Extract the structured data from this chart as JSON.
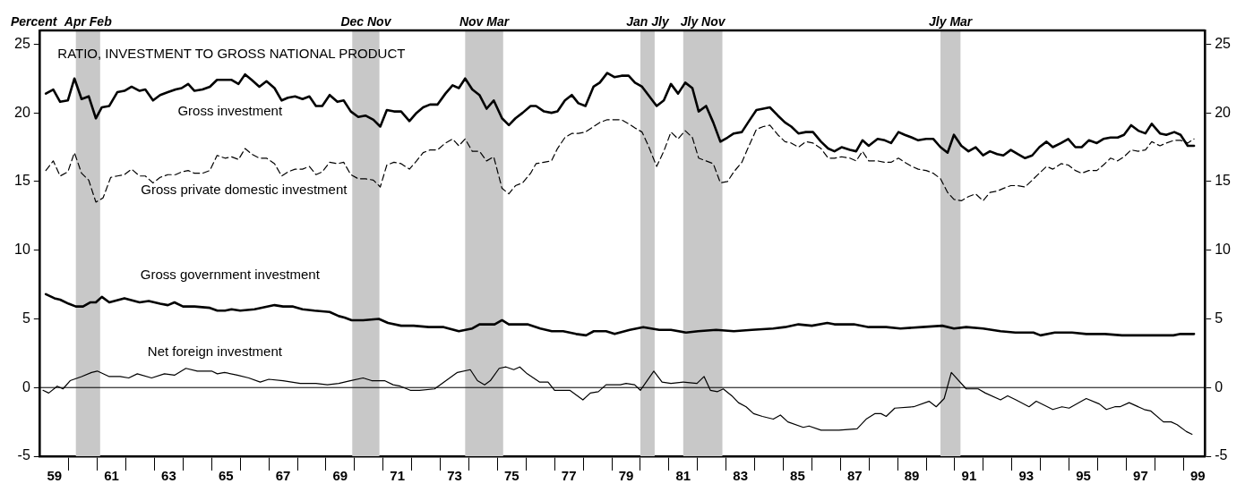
{
  "chart_data": {
    "type": "line",
    "title": "RATIO, INVESTMENT TO GROSS NATIONAL PRODUCT",
    "ylabel": "Percent",
    "xlim": [
      58.5,
      99.25
    ],
    "xticks": [
      59,
      {
        "value": 59.5,
        "label": null
      },
      {
        "value": 60.5,
        "label": null
      },
      61,
      {
        "value": 61.5,
        "label": null
      },
      {
        "value": 62.5,
        "label": null
      },
      63,
      {
        "value": 63.5,
        "label": null
      },
      {
        "value": 64.5,
        "label": null
      },
      65,
      {
        "value": 65.5,
        "label": null
      },
      {
        "value": 66.5,
        "label": null
      },
      67,
      {
        "value": 67.5,
        "label": null
      },
      {
        "value": 68.5,
        "label": null
      },
      69,
      {
        "value": 69.5,
        "label": null
      },
      {
        "value": 70.5,
        "label": null
      },
      71,
      {
        "value": 71.5,
        "label": null
      },
      {
        "value": 72.5,
        "label": null
      },
      73,
      {
        "value": 73.5,
        "label": null
      },
      {
        "value": 74.5,
        "label": null
      },
      75,
      {
        "value": 75.5,
        "label": null
      },
      {
        "value": 76.5,
        "label": null
      },
      77,
      {
        "value": 77.5,
        "label": null
      },
      {
        "value": 78.5,
        "label": null
      },
      79,
      {
        "value": 79.5,
        "label": null
      },
      {
        "value": 80.5,
        "label": null
      },
      81,
      {
        "value": 81.5,
        "label": null
      },
      {
        "value": 82.5,
        "label": null
      },
      83,
      {
        "value": 83.5,
        "label": null
      },
      {
        "value": 84.5,
        "label": null
      },
      85,
      {
        "value": 85.5,
        "label": null
      },
      {
        "value": 86.5,
        "label": null
      },
      87,
      {
        "value": 87.5,
        "label": null
      },
      {
        "value": 88.5,
        "label": null
      },
      89,
      {
        "value": 89.5,
        "label": null
      },
      {
        "value": 90.5,
        "label": null
      },
      91,
      {
        "value": 91.5,
        "label": null
      },
      {
        "value": 92.5,
        "label": null
      },
      93,
      {
        "value": 93.5,
        "label": null
      },
      {
        "value": 94.5,
        "label": null
      },
      95,
      {
        "value": 95.5,
        "label": null
      },
      {
        "value": 96.5,
        "label": null
      },
      97,
      {
        "value": 97.5,
        "label": null
      },
      {
        "value": 98.5,
        "label": null
      },
      99
    ],
    "ylim": [
      -5,
      26
    ],
    "yticks": [
      -5,
      0,
      5,
      10,
      15,
      20,
      25
    ],
    "y2lim": [
      -5,
      26
    ],
    "y2ticks": [
      -5,
      0,
      5,
      10,
      15,
      20,
      25
    ],
    "grid": false,
    "legend": false,
    "marker": "none",
    "bands": [
      {
        "axis": "x",
        "from": 59.75,
        "to": 60.6,
        "label": "Apr Feb",
        "color": "#c8c8c8"
      },
      {
        "axis": "x",
        "from": 69.42,
        "to": 70.37,
        "label": "Dec Nov",
        "color": "#c8c8c8"
      },
      {
        "axis": "x",
        "from": 73.37,
        "to": 74.7,
        "label": "Nov Mar",
        "color": "#c8c8c8"
      },
      {
        "axis": "x",
        "from": 79.5,
        "to": 80.0,
        "label": "Jan Jly",
        "color": "#c8c8c8"
      },
      {
        "axis": "x",
        "from": 81.0,
        "to": 82.37,
        "label": "Jly Nov",
        "color": "#c8c8c8"
      },
      {
        "axis": "x",
        "from": 90.0,
        "to": 90.7,
        "label": "Jly Mar",
        "color": "#c8c8c8"
      }
    ],
    "ref_lines": [
      {
        "axis": "y",
        "value": 0,
        "color": "#000000"
      }
    ],
    "series": [
      {
        "name": "Gross investment",
        "color": "#000000",
        "line_style": "solid",
        "x": [
          58.7,
          58.96,
          59.2,
          59.47,
          59.7,
          59.95,
          60.2,
          60.45,
          60.66,
          60.92,
          61.2,
          61.45,
          61.7,
          61.98,
          62.18,
          62.45,
          62.7,
          62.97,
          63.24,
          63.45,
          63.68,
          63.9,
          64.18,
          64.44,
          64.69,
          64.97,
          65.2,
          65.44,
          65.67,
          65.9,
          66.17,
          66.42,
          66.7,
          66.95,
          67.17,
          67.42,
          67.68,
          67.92,
          68.15,
          68.37,
          68.63,
          68.9,
          69.12,
          69.37,
          69.63,
          69.88,
          70.16,
          70.4,
          70.63,
          70.88,
          71.13,
          71.42,
          71.67,
          71.9,
          72.14,
          72.4,
          72.68,
          72.93,
          73.15,
          73.37,
          73.62,
          73.87,
          74.12,
          74.37,
          74.66,
          74.9,
          75.13,
          75.38,
          75.66,
          75.85,
          76.13,
          76.39,
          76.6,
          76.86,
          77.1,
          77.33,
          77.58,
          77.86,
          78.08,
          78.34,
          78.59,
          78.84,
          79.09,
          79.31,
          79.56,
          79.78,
          80.07,
          80.32,
          80.57,
          80.82,
          81.07,
          81.32,
          81.54,
          81.8,
          82.05,
          82.3,
          82.55,
          82.77,
          83.05,
          83.3,
          83.56,
          83.8,
          84.03,
          84.31,
          84.56,
          84.78,
          85.03,
          85.29,
          85.54,
          85.82,
          86.07,
          86.29,
          86.54,
          86.83,
          87.05,
          87.27,
          87.49,
          87.8,
          88.05,
          88.27,
          88.53,
          88.75,
          89.0,
          89.22,
          89.5,
          89.75,
          90.0,
          90.25,
          90.47,
          90.73,
          90.98,
          91.23,
          91.49,
          91.73,
          91.98,
          92.2,
          92.46,
          92.7,
          92.96,
          93.21,
          93.46,
          93.71,
          93.93,
          94.22,
          94.47,
          94.72,
          94.94,
          95.19,
          95.47,
          95.7,
          95.95,
          96.2,
          96.42,
          96.67,
          96.92,
          97.17,
          97.39,
          97.68,
          97.9,
          98.18,
          98.4,
          98.65,
          98.87
        ],
        "values": [
          21.4,
          21.7,
          20.8,
          20.9,
          22.5,
          21.0,
          21.2,
          19.6,
          20.4,
          20.5,
          21.5,
          21.6,
          21.9,
          21.6,
          21.7,
          20.9,
          21.3,
          21.5,
          21.7,
          21.8,
          22.1,
          21.6,
          21.7,
          21.9,
          22.4,
          22.4,
          22.4,
          22.1,
          22.8,
          22.4,
          21.9,
          22.3,
          21.8,
          20.9,
          21.1,
          21.2,
          21.0,
          21.2,
          20.5,
          20.5,
          21.3,
          20.8,
          20.9,
          20.1,
          19.7,
          19.8,
          19.5,
          19.0,
          20.2,
          20.1,
          20.1,
          19.4,
          20.0,
          20.4,
          20.6,
          20.6,
          21.4,
          22.0,
          21.8,
          22.5,
          21.7,
          21.3,
          20.3,
          20.9,
          19.6,
          19.1,
          19.6,
          20.0,
          20.5,
          20.5,
          20.1,
          20.0,
          20.1,
          20.9,
          21.3,
          20.7,
          20.5,
          21.9,
          22.2,
          22.9,
          22.6,
          22.7,
          22.7,
          22.2,
          21.9,
          21.3,
          20.5,
          20.9,
          22.1,
          21.4,
          22.2,
          21.8,
          20.1,
          20.5,
          19.3,
          17.9,
          18.2,
          18.5,
          18.6,
          19.4,
          20.2,
          20.3,
          20.4,
          19.8,
          19.3,
          19.0,
          18.5,
          18.6,
          18.6,
          17.9,
          17.4,
          17.2,
          17.5,
          17.3,
          17.2,
          18.0,
          17.6,
          18.1,
          18.0,
          17.8,
          18.6,
          18.4,
          18.2,
          18.0,
          18.1,
          18.1,
          17.5,
          17.1,
          18.4,
          17.6,
          17.2,
          17.5,
          16.9,
          17.2,
          17.0,
          16.9,
          17.3,
          17.0,
          16.7,
          16.9,
          17.5,
          17.9,
          17.5,
          17.8,
          18.1,
          17.5,
          17.5,
          18.0,
          17.8,
          18.1,
          18.2,
          18.2,
          18.4,
          19.1,
          18.7,
          18.5,
          19.2,
          18.5,
          18.4,
          18.6,
          18.4,
          17.6,
          17.6
        ]
      },
      {
        "name": "Gross private domestic investment",
        "color": "#000000",
        "line_style": "dashed",
        "x": [
          58.7,
          58.96,
          59.2,
          59.47,
          59.7,
          59.95,
          60.2,
          60.45,
          60.7,
          60.97,
          61.2,
          61.45,
          61.7,
          61.98,
          62.18,
          62.45,
          62.7,
          62.97,
          63.24,
          63.45,
          63.68,
          63.9,
          64.18,
          64.44,
          64.69,
          64.97,
          65.2,
          65.44,
          65.67,
          65.9,
          66.17,
          66.42,
          66.7,
          66.95,
          67.17,
          67.42,
          67.68,
          67.92,
          68.15,
          68.37,
          68.63,
          68.9,
          69.12,
          69.37,
          69.63,
          69.88,
          70.16,
          70.4,
          70.63,
          70.88,
          71.13,
          71.42,
          71.67,
          71.9,
          72.14,
          72.4,
          72.68,
          72.93,
          73.15,
          73.37,
          73.62,
          73.87,
          74.12,
          74.37,
          74.66,
          74.9,
          75.13,
          75.38,
          75.66,
          75.85,
          76.13,
          76.39,
          76.6,
          76.86,
          77.1,
          77.33,
          77.58,
          77.86,
          78.08,
          78.34,
          78.59,
          78.84,
          79.09,
          79.31,
          79.56,
          79.78,
          80.07,
          80.32,
          80.57,
          80.82,
          81.07,
          81.32,
          81.54,
          81.8,
          82.05,
          82.3,
          82.55,
          82.77,
          83.05,
          83.3,
          83.56,
          83.8,
          84.03,
          84.31,
          84.56,
          84.78,
          85.03,
          85.29,
          85.54,
          85.82,
          86.07,
          86.29,
          86.54,
          86.83,
          87.05,
          87.27,
          87.49,
          87.8,
          88.05,
          88.27,
          88.53,
          88.75,
          89.0,
          89.22,
          89.5,
          89.75,
          90.0,
          90.25,
          90.47,
          90.73,
          90.98,
          91.23,
          91.49,
          91.73,
          91.98,
          92.2,
          92.46,
          92.7,
          92.96,
          93.21,
          93.46,
          93.71,
          93.93,
          94.22,
          94.47,
          94.72,
          94.94,
          95.19,
          95.47,
          95.7,
          95.95,
          96.2,
          96.42,
          96.67,
          96.92,
          97.17,
          97.39,
          97.68,
          97.9,
          98.18,
          98.4,
          98.65,
          98.87
        ],
        "values": [
          15.8,
          16.5,
          15.4,
          15.7,
          17.1,
          15.6,
          15.1,
          13.5,
          13.8,
          15.3,
          15.4,
          15.5,
          15.9,
          15.4,
          15.4,
          14.9,
          15.3,
          15.5,
          15.5,
          15.7,
          15.8,
          15.6,
          15.6,
          15.8,
          16.9,
          16.7,
          16.8,
          16.6,
          17.4,
          17.0,
          16.7,
          16.7,
          16.3,
          15.4,
          15.7,
          15.9,
          15.9,
          16.1,
          15.5,
          15.7,
          16.4,
          16.3,
          16.4,
          15.5,
          15.2,
          15.2,
          15.1,
          14.6,
          16.2,
          16.4,
          16.3,
          15.9,
          16.5,
          17.1,
          17.3,
          17.3,
          17.8,
          18.1,
          17.6,
          18.1,
          17.2,
          17.2,
          16.5,
          16.8,
          14.5,
          14.1,
          14.7,
          14.9,
          15.6,
          16.3,
          16.4,
          16.5,
          17.4,
          18.2,
          18.5,
          18.5,
          18.6,
          19.0,
          19.3,
          19.5,
          19.5,
          19.5,
          19.2,
          18.9,
          18.6,
          17.6,
          16.1,
          17.2,
          18.6,
          18.1,
          18.7,
          18.2,
          16.7,
          16.5,
          16.3,
          14.9,
          15.0,
          15.7,
          16.4,
          17.6,
          18.8,
          19.0,
          19.1,
          18.4,
          17.9,
          17.8,
          17.5,
          17.9,
          17.8,
          17.4,
          16.7,
          16.7,
          16.8,
          16.7,
          16.5,
          17.2,
          16.5,
          16.5,
          16.4,
          16.4,
          16.7,
          16.4,
          16.1,
          15.9,
          15.8,
          15.6,
          15.2,
          14.2,
          13.7,
          13.6,
          13.9,
          14.1,
          13.6,
          14.2,
          14.3,
          14.5,
          14.7,
          14.7,
          14.6,
          15.1,
          15.6,
          16.1,
          15.9,
          16.3,
          16.2,
          15.8,
          15.6,
          15.8,
          15.8,
          16.2,
          16.7,
          16.5,
          16.8,
          17.3,
          17.2,
          17.3,
          17.9,
          17.6,
          17.8,
          18.0,
          18.0,
          17.8,
          18.1
        ]
      },
      {
        "name": "Gross government investment",
        "color": "#000000",
        "line_style": "solid",
        "x": [
          58.7,
          59.0,
          59.2,
          59.5,
          59.75,
          60.0,
          60.25,
          60.45,
          60.66,
          60.92,
          61.45,
          61.98,
          62.3,
          62.7,
          62.97,
          63.2,
          63.5,
          63.9,
          64.44,
          64.7,
          64.97,
          65.2,
          65.5,
          66.0,
          66.7,
          67.0,
          67.35,
          67.68,
          68.1,
          68.63,
          68.95,
          69.15,
          69.4,
          69.8,
          70.35,
          70.67,
          71.13,
          71.57,
          72.1,
          72.62,
          73.15,
          73.62,
          73.87,
          74.4,
          74.66,
          74.9,
          75.2,
          75.55,
          76.0,
          76.4,
          76.8,
          77.25,
          77.6,
          77.87,
          78.3,
          78.6,
          79.13,
          79.6,
          80.16,
          80.57,
          81.1,
          81.52,
          82.15,
          82.77,
          83.4,
          84.15,
          84.56,
          85.03,
          85.5,
          86.04,
          86.29,
          86.97,
          87.49,
          88.1,
          88.6,
          89.35,
          90.06,
          90.47,
          90.9,
          91.49,
          92.1,
          92.62,
          93.25,
          93.5,
          94.0,
          94.6,
          95.1,
          95.75,
          96.35,
          97.0,
          97.5,
          98.15,
          98.4,
          98.87
        ],
        "values": [
          6.8,
          6.5,
          6.4,
          6.1,
          5.9,
          5.9,
          6.2,
          6.2,
          6.6,
          6.2,
          6.5,
          6.2,
          6.3,
          6.1,
          6.0,
          6.2,
          5.9,
          5.9,
          5.8,
          5.6,
          5.6,
          5.7,
          5.6,
          5.7,
          6.0,
          5.9,
          5.9,
          5.7,
          5.6,
          5.5,
          5.2,
          5.1,
          4.9,
          4.9,
          5.0,
          4.7,
          4.5,
          4.5,
          4.4,
          4.4,
          4.1,
          4.3,
          4.6,
          4.6,
          4.9,
          4.6,
          4.6,
          4.6,
          4.3,
          4.1,
          4.1,
          3.9,
          3.8,
          4.1,
          4.1,
          3.9,
          4.2,
          4.4,
          4.2,
          4.2,
          4.0,
          4.1,
          4.2,
          4.1,
          4.2,
          4.3,
          4.4,
          4.6,
          4.5,
          4.7,
          4.6,
          4.6,
          4.4,
          4.4,
          4.3,
          4.4,
          4.5,
          4.3,
          4.4,
          4.3,
          4.1,
          4.0,
          4.0,
          3.8,
          4.0,
          4.0,
          3.9,
          3.9,
          3.8,
          3.8,
          3.8,
          3.8,
          3.9,
          3.9
        ]
      },
      {
        "name": "Net foreign investment",
        "color": "#000000",
        "line_style": "solid",
        "x": [
          58.6,
          58.8,
          59.1,
          59.3,
          59.55,
          59.95,
          60.3,
          60.5,
          60.92,
          61.3,
          61.6,
          61.9,
          62.4,
          62.85,
          63.2,
          63.6,
          64.0,
          64.5,
          64.7,
          64.95,
          65.4,
          65.8,
          66.2,
          66.5,
          67.0,
          67.6,
          68.15,
          68.55,
          68.95,
          69.35,
          69.8,
          70.1,
          70.55,
          70.85,
          71.1,
          71.45,
          71.77,
          72.3,
          72.7,
          73.1,
          73.55,
          73.8,
          74.05,
          74.25,
          74.56,
          74.8,
          75.07,
          75.28,
          75.54,
          75.97,
          76.27,
          76.5,
          77.03,
          77.49,
          77.75,
          78.03,
          78.3,
          78.8,
          79.0,
          79.3,
          79.5,
          79.97,
          80.26,
          80.57,
          81.0,
          81.48,
          81.73,
          81.95,
          82.2,
          82.4,
          82.7,
          82.93,
          83.2,
          83.46,
          83.77,
          84.15,
          84.4,
          84.66,
          85.2,
          85.4,
          85.82,
          86.45,
          87.08,
          87.4,
          87.7,
          87.92,
          88.1,
          88.4,
          89.06,
          89.6,
          89.85,
          90.13,
          90.38,
          90.9,
          91.32,
          91.57,
          92.1,
          92.35,
          92.64,
          93.1,
          93.35,
          93.93,
          94.25,
          94.5,
          95.1,
          95.56,
          95.8,
          96.1,
          96.28,
          96.6,
          97.13,
          97.35,
          97.8,
          98.07,
          98.28,
          98.6,
          98.8
        ],
        "values": [
          -0.2,
          -0.4,
          0.1,
          -0.1,
          0.5,
          0.8,
          1.1,
          1.2,
          0.8,
          0.8,
          0.7,
          1.0,
          0.7,
          1.0,
          0.9,
          1.4,
          1.2,
          1.2,
          1.0,
          1.1,
          0.9,
          0.7,
          0.4,
          0.6,
          0.5,
          0.3,
          0.3,
          0.2,
          0.3,
          0.5,
          0.7,
          0.5,
          0.5,
          0.2,
          0.1,
          -0.2,
          -0.2,
          -0.1,
          0.5,
          1.1,
          1.3,
          0.5,
          0.2,
          0.5,
          1.4,
          1.5,
          1.3,
          1.5,
          1.0,
          0.4,
          0.4,
          -0.2,
          -0.2,
          -0.9,
          -0.4,
          -0.3,
          0.2,
          0.2,
          0.3,
          0.2,
          -0.2,
          1.2,
          0.4,
          0.3,
          0.4,
          0.3,
          0.8,
          -0.2,
          -0.3,
          -0.1,
          -0.6,
          -1.1,
          -1.4,
          -1.9,
          -2.1,
          -2.3,
          -2.0,
          -2.5,
          -2.9,
          -2.8,
          -3.1,
          -3.1,
          -3.0,
          -2.3,
          -1.9,
          -1.9,
          -2.1,
          -1.5,
          -1.4,
          -1.0,
          -1.4,
          -0.8,
          1.1,
          -0.1,
          -0.1,
          -0.4,
          -0.9,
          -0.6,
          -0.9,
          -1.4,
          -1.0,
          -1.6,
          -1.4,
          -1.5,
          -0.8,
          -1.2,
          -1.6,
          -1.4,
          -1.4,
          -1.1,
          -1.6,
          -1.7,
          -2.5,
          -2.5,
          -2.7,
          -3.2,
          -3.4
        ]
      }
    ]
  }
}
